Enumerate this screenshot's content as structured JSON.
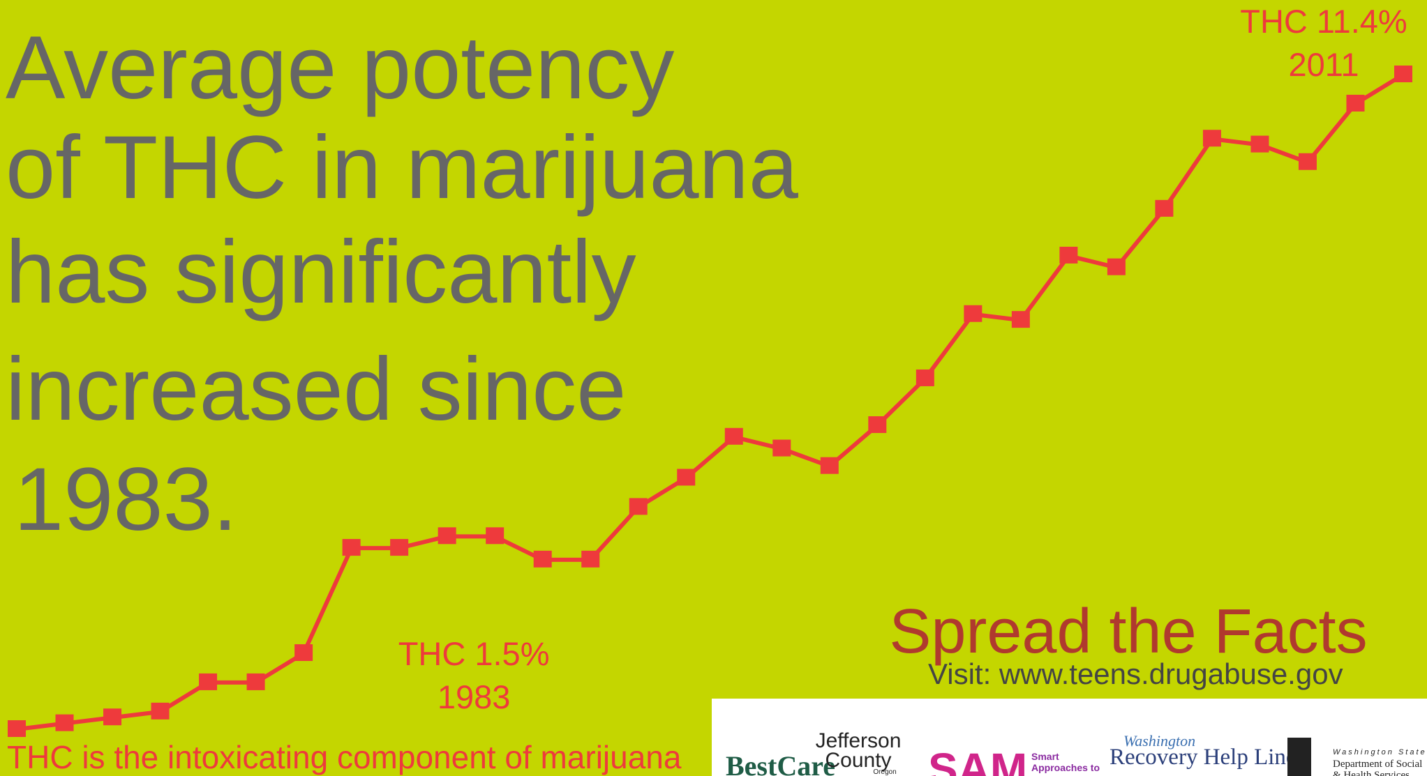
{
  "chart_data": {
    "type": "line",
    "title_lines": [
      "Average potency",
      "of THC in marijuana",
      "has significantly",
      "increased since",
      "1983."
    ],
    "values": [
      0.2,
      0.3,
      0.4,
      0.5,
      1.0,
      1.0,
      1.5,
      3.3,
      3.3,
      3.5,
      3.5,
      3.1,
      3.1,
      4.0,
      4.5,
      5.2,
      5.0,
      4.7,
      5.4,
      6.2,
      7.3,
      7.2,
      8.3,
      8.1,
      9.1,
      10.3,
      10.2,
      9.9,
      10.9,
      11.4
    ],
    "color": "#ee3a3c",
    "annotations": [
      {
        "lines": [
          "THC 1.5%",
          "1983"
        ],
        "point": 6
      },
      {
        "lines": [
          "THC 11.4%",
          "2011"
        ],
        "point": 29
      }
    ],
    "note": "THC is the intoxicating component of marijuana",
    "cta": "Spread the Facts",
    "visit": "Visit: www.teens.drugabuse.gov",
    "logos": [
      "BestCare",
      "Jefferson",
      "County",
      "Oregon",
      "SAM",
      "Smart",
      "Approaches to",
      "Washington",
      "Recovery Help Line",
      "Washington State",
      "Department of Social",
      "& Health Services"
    ]
  }
}
